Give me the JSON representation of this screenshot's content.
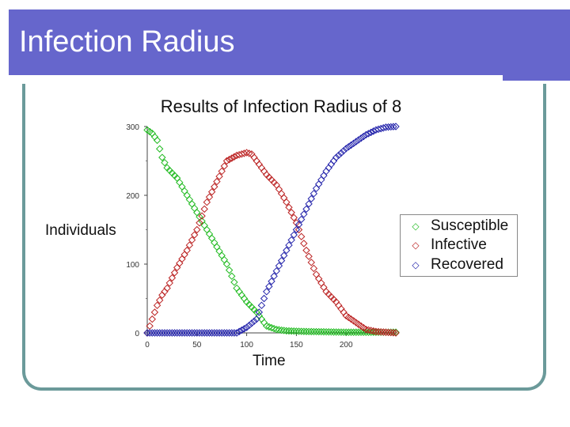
{
  "slide": {
    "title": "Infection Radius"
  },
  "colors": {
    "header": "#6666cc",
    "frame": "#6b9a9a",
    "susceptible": "#22bb22",
    "infective": "#bb2222",
    "recovered": "#2222aa"
  },
  "chart_data": {
    "type": "scatter",
    "title": "Results of Infection Radius of 8",
    "xlabel": "Time",
    "ylabel": "Individuals",
    "xlim": [
      0,
      250
    ],
    "ylim": [
      0,
      300
    ],
    "x_ticks": [
      "0",
      "50",
      "100",
      "150",
      "200"
    ],
    "y_ticks": [
      "0",
      "100",
      "200",
      "300"
    ],
    "marker": "diamond",
    "legend": "right",
    "series": [
      {
        "name": "Susceptible",
        "points": [
          [
            0,
            295
          ],
          [
            5,
            290
          ],
          [
            10,
            280
          ],
          [
            15,
            255
          ],
          [
            20,
            240
          ],
          [
            30,
            225
          ],
          [
            40,
            200
          ],
          [
            50,
            175
          ],
          [
            60,
            150
          ],
          [
            70,
            125
          ],
          [
            80,
            100
          ],
          [
            90,
            65
          ],
          [
            100,
            45
          ],
          [
            110,
            30
          ],
          [
            120,
            10
          ],
          [
            130,
            5
          ],
          [
            140,
            3
          ],
          [
            160,
            2
          ],
          [
            200,
            1
          ],
          [
            250,
            1
          ]
        ]
      },
      {
        "name": "Infective",
        "points": [
          [
            0,
            0
          ],
          [
            5,
            20
          ],
          [
            10,
            40
          ],
          [
            15,
            55
          ],
          [
            20,
            65
          ],
          [
            30,
            95
          ],
          [
            40,
            120
          ],
          [
            50,
            150
          ],
          [
            60,
            190
          ],
          [
            70,
            220
          ],
          [
            80,
            250
          ],
          [
            90,
            258
          ],
          [
            100,
            262
          ],
          [
            105,
            260
          ],
          [
            110,
            250
          ],
          [
            120,
            230
          ],
          [
            130,
            215
          ],
          [
            140,
            190
          ],
          [
            150,
            160
          ],
          [
            160,
            120
          ],
          [
            170,
            85
          ],
          [
            180,
            60
          ],
          [
            190,
            45
          ],
          [
            200,
            25
          ],
          [
            210,
            15
          ],
          [
            220,
            5
          ],
          [
            230,
            2
          ],
          [
            240,
            1
          ],
          [
            250,
            0
          ]
        ]
      },
      {
        "name": "Recovered",
        "points": [
          [
            0,
            0
          ],
          [
            50,
            0
          ],
          [
            90,
            0
          ],
          [
            100,
            8
          ],
          [
            110,
            20
          ],
          [
            120,
            60
          ],
          [
            130,
            90
          ],
          [
            140,
            120
          ],
          [
            150,
            150
          ],
          [
            160,
            180
          ],
          [
            170,
            210
          ],
          [
            180,
            235
          ],
          [
            190,
            255
          ],
          [
            200,
            268
          ],
          [
            210,
            278
          ],
          [
            220,
            288
          ],
          [
            230,
            295
          ],
          [
            240,
            299
          ],
          [
            250,
            300
          ]
        ]
      }
    ]
  }
}
